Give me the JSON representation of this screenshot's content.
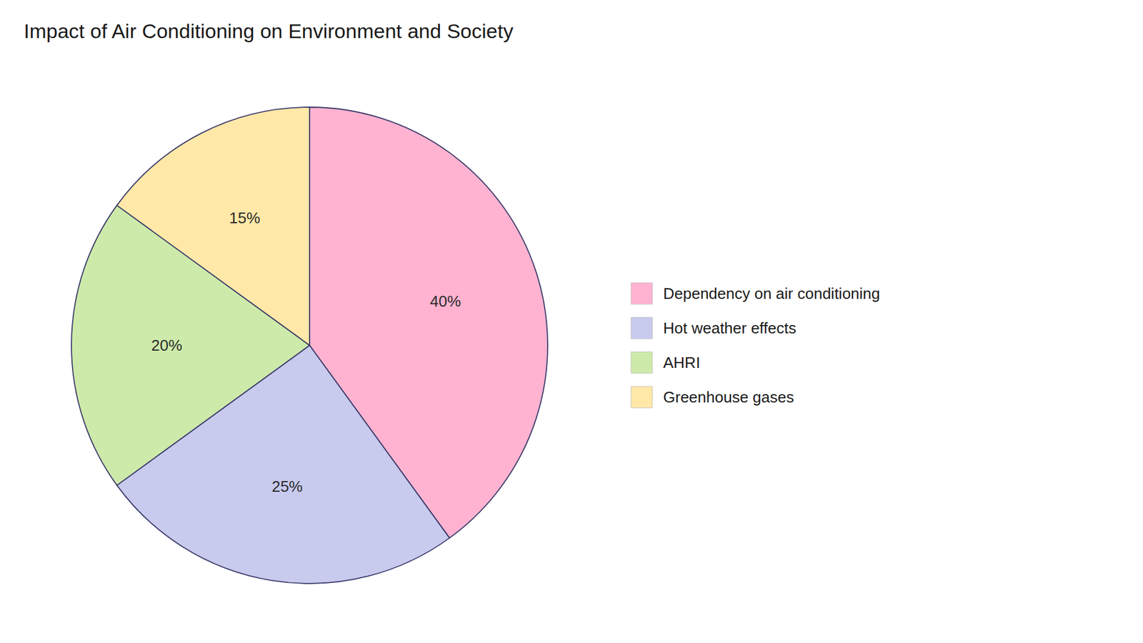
{
  "chart_data": {
    "type": "pie",
    "title": "Impact of Air Conditioning on Environment and Society",
    "categories": [
      "Dependency on air conditioning",
      "Hot weather effects",
      "AHRI",
      "Greenhouse gases"
    ],
    "values": [
      40,
      25,
      20,
      15
    ],
    "value_labels": [
      "40%",
      "25%",
      "20%",
      "15%"
    ],
    "colors": [
      "#FFB3D1",
      "#C8CAEE",
      "#CEEAAA",
      "#FFE8A8"
    ],
    "data_labels": true,
    "legend": "right"
  }
}
